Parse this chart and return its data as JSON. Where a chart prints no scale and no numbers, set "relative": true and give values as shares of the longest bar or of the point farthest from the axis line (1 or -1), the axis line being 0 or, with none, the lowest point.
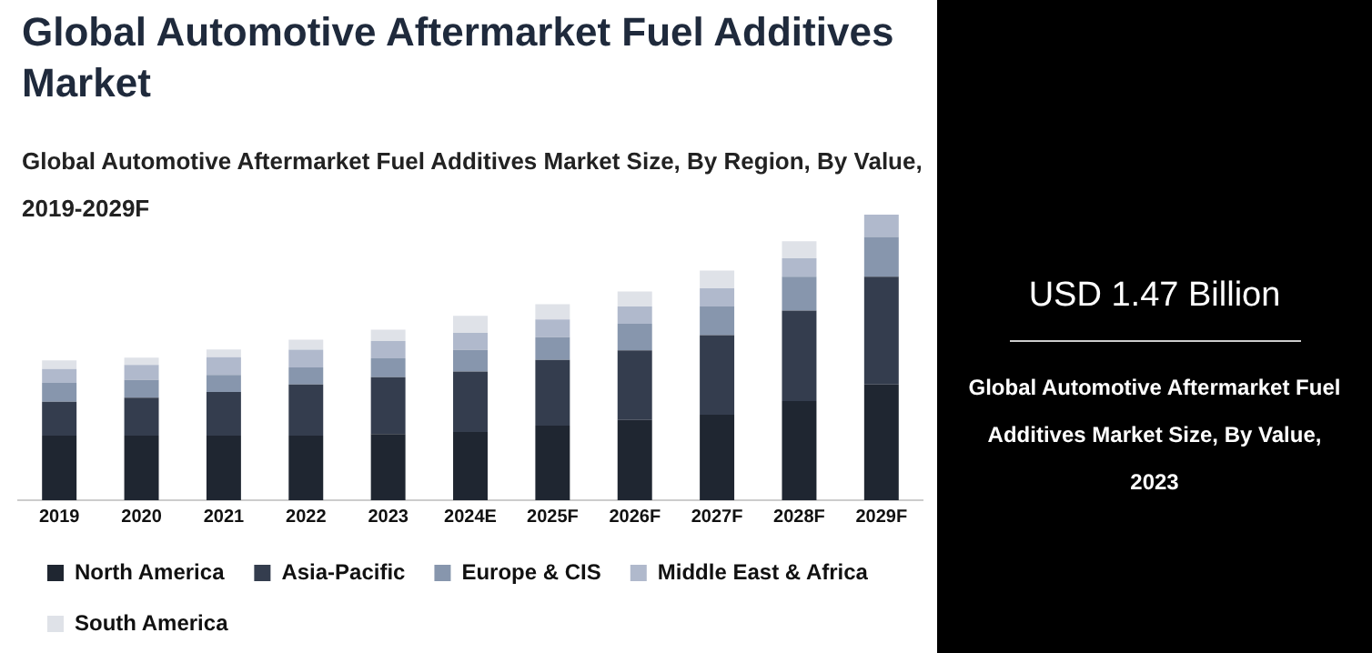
{
  "chart_data": {
    "type": "bar",
    "title": "Global Automotive Aftermarket Fuel Additives Market",
    "subtitle": "Global Automotive Aftermarket Fuel Additives Market Size, By Region, By Value, 2019-2029F",
    "categories": [
      "2019",
      "2020",
      "2021",
      "2022",
      "2023",
      "2024E",
      "2025F",
      "2026F",
      "2027F",
      "2028F",
      "2029F"
    ],
    "stacked": true,
    "relative": true,
    "legend": "bottom",
    "grid": false,
    "series": [
      {
        "name": "North America",
        "color": "#1f2631",
        "values": [
          0.226,
          0.226,
          0.226,
          0.226,
          0.232,
          0.239,
          0.261,
          0.281,
          0.299,
          0.347,
          0.405
        ]
      },
      {
        "name": "Asia-Pacific",
        "color": "#343d4e",
        "values": [
          0.119,
          0.133,
          0.153,
          0.179,
          0.199,
          0.212,
          0.23,
          0.244,
          0.279,
          0.317,
          0.378
        ]
      },
      {
        "name": "Europe & CIS",
        "color": "#8796ad",
        "values": [
          0.066,
          0.062,
          0.06,
          0.06,
          0.066,
          0.075,
          0.08,
          0.093,
          0.1,
          0.119,
          0.139
        ]
      },
      {
        "name": "Middle East & Africa",
        "color": "#b0b9cc",
        "values": [
          0.048,
          0.053,
          0.062,
          0.062,
          0.06,
          0.06,
          0.062,
          0.06,
          0.064,
          0.064,
          0.078
        ]
      },
      {
        "name": "South America",
        "color": "#dfe2e8",
        "values": [
          0.031,
          0.025,
          0.027,
          0.035,
          0.04,
          0.06,
          0.053,
          0.053,
          0.062,
          0.06,
          0
        ]
      }
    ],
    "annotations": [
      "USD 1.47 Billion",
      "Global Automotive Aftermarket Fuel Additives Market Size, By Value, 2023"
    ]
  }
}
